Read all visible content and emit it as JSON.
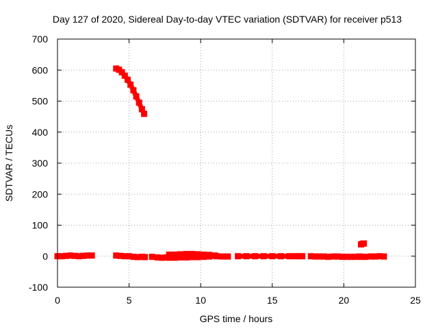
{
  "chart_data": {
    "type": "scatter",
    "title": "Day 127 of 2020, Sidereal Day-to-day VTEC variation (SDTVAR) for receiver p513",
    "xlabel": "GPS time / hours",
    "ylabel": "SDTVAR / TECUs",
    "xlim": [
      0,
      25
    ],
    "ylim": [
      -100,
      700
    ],
    "xticks": [
      0,
      5,
      10,
      15,
      20,
      25
    ],
    "yticks": [
      -100,
      0,
      100,
      200,
      300,
      400,
      500,
      600,
      700
    ],
    "grid": true,
    "color": "#ff0000",
    "series": [
      {
        "name": "decreasing-arc",
        "x": [
          4.1,
          4.3,
          4.5,
          4.7,
          4.9,
          5.1,
          5.3,
          5.5,
          5.7,
          5.9,
          6.05
        ],
        "y": [
          605,
          601,
          593,
          582,
          569,
          553,
          535,
          515,
          495,
          474,
          459
        ]
      },
      {
        "name": "near-zero-segment-1",
        "x": [
          0.0,
          0.3,
          0.6,
          0.9,
          1.2,
          1.5,
          1.8,
          2.1,
          2.4
        ],
        "y": [
          0,
          0,
          1,
          2,
          1,
          0,
          1,
          2,
          2
        ]
      },
      {
        "name": "near-zero-segment-2",
        "x": [
          4.1,
          4.4,
          4.7,
          5.0,
          5.3,
          5.6,
          5.9,
          6.1
        ],
        "y": [
          2,
          1,
          0,
          0,
          -2,
          -3,
          -2,
          -3
        ]
      },
      {
        "name": "near-zero-segment-3",
        "x": [
          6.6,
          7.0,
          7.3,
          7.6
        ],
        "y": [
          -2,
          -4,
          -5,
          -4
        ]
      },
      {
        "name": "near-zero-segment-4",
        "x": [
          7.8,
          8.2,
          8.6,
          9.0,
          9.4,
          9.8,
          10.2,
          10.6,
          11.0
        ],
        "y": [
          5,
          5,
          6,
          7,
          7,
          6,
          5,
          4,
          2
        ]
      },
      {
        "name": "near-zero-segment-5",
        "x": [
          7.8,
          8.2,
          8.6,
          9.0,
          9.4,
          9.8,
          10.2,
          10.6
        ],
        "y": [
          -5,
          -5,
          -4,
          -4,
          -3,
          -3,
          -2,
          -1
        ]
      },
      {
        "name": "near-zero-segment-6",
        "x": [
          11.1,
          11.5,
          11.9
        ],
        "y": [
          0,
          -1,
          -1
        ]
      },
      {
        "name": "near-zero-segment-7",
        "x": [
          12.6,
          13.2,
          13.8,
          14.4,
          15.0,
          15.6,
          16.2,
          16.6
        ],
        "y": [
          0,
          0,
          0,
          0,
          0,
          0,
          0,
          0
        ]
      },
      {
        "name": "near-zero-segment-8",
        "x": [
          16.9,
          17.1
        ],
        "y": [
          0,
          0
        ]
      },
      {
        "name": "near-zero-segment-9",
        "x": [
          17.7,
          18.0,
          18.3,
          18.6,
          18.9
        ],
        "y": [
          0,
          -1,
          -1,
          -1,
          -2
        ]
      },
      {
        "name": "near-zero-segment-10",
        "x": [
          19.3,
          19.6,
          19.9,
          20.2,
          20.5,
          20.8,
          21.1
        ],
        "y": [
          -1,
          -1,
          -2,
          -2,
          -2,
          -2,
          -1
        ]
      },
      {
        "name": "near-zero-segment-11",
        "x": [
          21.2,
          21.5
        ],
        "y": [
          -2,
          -2
        ]
      },
      {
        "name": "near-zero-segment-12",
        "x": [
          21.9,
          22.2,
          22.5,
          22.8
        ],
        "y": [
          -1,
          -1,
          0,
          -1
        ]
      },
      {
        "name": "small-spike",
        "x": [
          21.2,
          21.3,
          21.4
        ],
        "y": [
          38,
          40,
          41
        ]
      }
    ]
  }
}
